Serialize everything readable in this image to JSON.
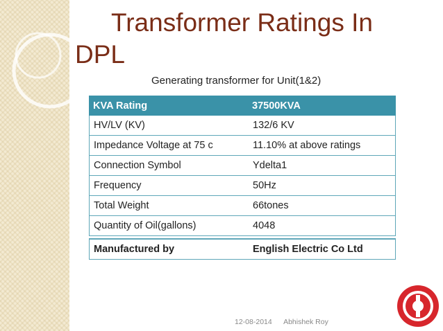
{
  "title": "Transformer Ratings In DPL",
  "subtitle": "Generating transformer for Unit(1&2)",
  "table": {
    "header": [
      "KVA Rating",
      "37500KVA"
    ],
    "rows": [
      [
        "HV/LV (KV)",
        "132/6 KV"
      ],
      [
        "Impedance Voltage at 75 c",
        "11.10% at above ratings"
      ],
      [
        "Connection Symbol",
        "Ydelta1"
      ],
      [
        "Frequency",
        "50Hz"
      ],
      [
        "Total  Weight",
        "66tones"
      ],
      [
        "Quantity of Oil(gallons)",
        "4048"
      ]
    ],
    "footer_row": [
      "Manufactured by",
      "English Electric Co Ltd"
    ]
  },
  "footer": {
    "date": "12-08-2014",
    "author": "Abhishek Roy"
  }
}
